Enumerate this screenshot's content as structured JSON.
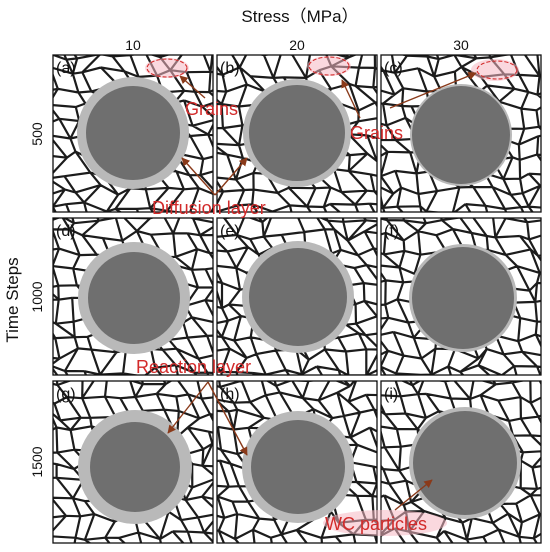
{
  "figure": {
    "column_header": "Stress（MPa）",
    "row_header": "Time Steps",
    "columns": [
      "10",
      "20",
      "30"
    ],
    "rows": [
      "500",
      "1000",
      "1500"
    ],
    "panels": [
      {
        "label": "(a)",
        "shell_level": 0.9
      },
      {
        "label": "(b)",
        "shell_level": 0.55
      },
      {
        "label": "(c)",
        "shell_level": 0.15
      },
      {
        "label": "(d)",
        "shell_level": 1.0
      },
      {
        "label": "(e)",
        "shell_level": 0.65
      },
      {
        "label": "(f)",
        "shell_level": 0.2
      },
      {
        "label": "(g)",
        "shell_level": 1.0
      },
      {
        "label": "(h)",
        "shell_level": 0.7
      },
      {
        "label": "(i)",
        "shell_level": 0.25
      }
    ],
    "annotations": {
      "grains_1": "Grains",
      "grains_2": "Grains",
      "diffusion": "Diffusion layer",
      "reaction": "Reaction layer",
      "wc": "WC particles"
    },
    "colors": {
      "core": "#6f6f6f",
      "shell": "#b9b9b9",
      "grain_boundary": "#1c1c1c",
      "annotation": "#d22a2a",
      "highlight": "#f5b8c2"
    }
  }
}
